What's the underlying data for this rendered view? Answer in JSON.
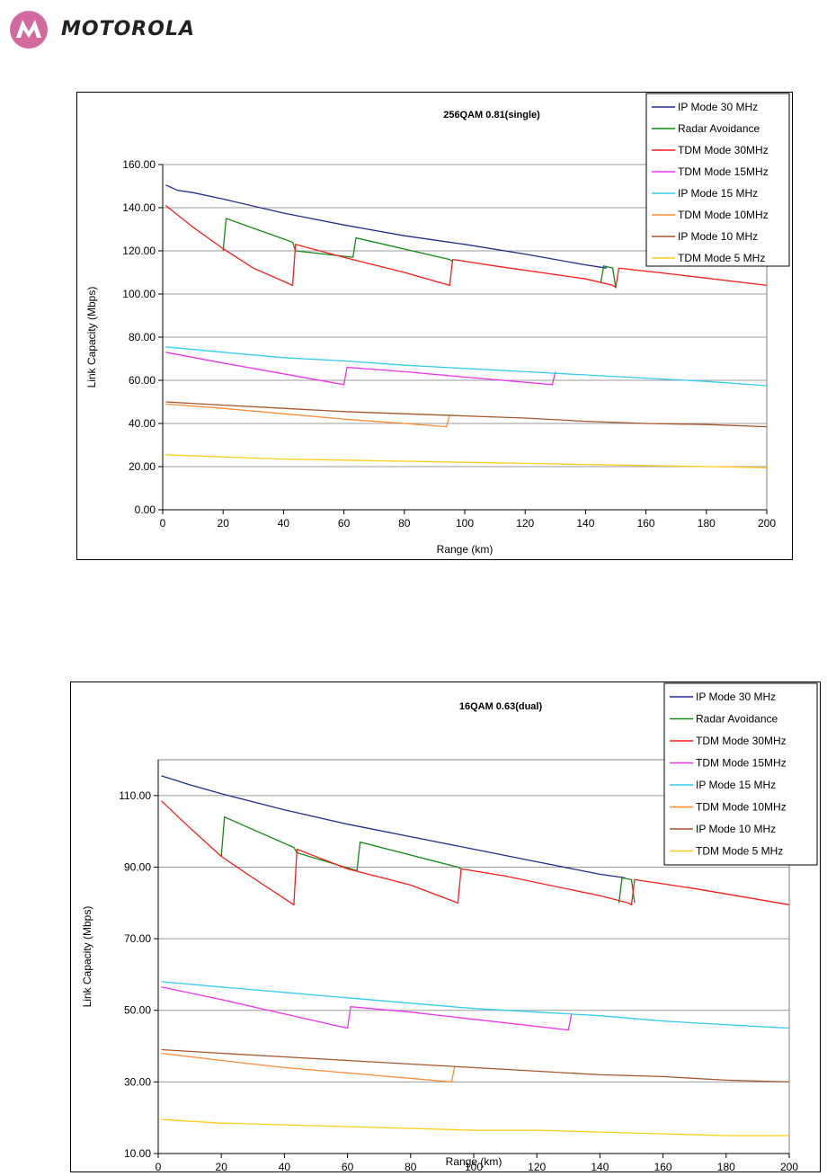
{
  "header": {
    "brand": "MOTOROLA",
    "logo_icon": "motorola-batwing-logo-icon",
    "logo_color": "#d36a9f"
  },
  "colors": {
    "IP Mode 30 MHz": "#1f2d8c",
    "Radar Avoidance": "#128a12",
    "TDM Mode 30MHz": "#ff1a1a",
    "TDM Mode 15MHz": "#ee33ee",
    "IP Mode 15 MHz": "#33ccee",
    "TDM Mode 10MHz": "#ff8a33",
    "IP Mode 10 MHz": "#a8552b",
    "TDM Mode 5 MHz": "#ffcc1a"
  },
  "chart_data": [
    {
      "type": "line",
      "title": "256QAM 0.81(single)",
      "xlabel": "Range (km)",
      "ylabel": "Link Capacity (Mbps)",
      "xlim": [
        0,
        200
      ],
      "ylim": [
        0,
        160
      ],
      "xticks": [
        0,
        20,
        40,
        60,
        80,
        100,
        120,
        140,
        160,
        180,
        200
      ],
      "yticks": [
        0,
        20,
        40,
        60,
        80,
        100,
        120,
        140,
        160
      ],
      "yticklabels": [
        "0.00",
        "20.00",
        "40.00",
        "60.00",
        "80.00",
        "100.00",
        "120.00",
        "140.00",
        "160.00"
      ],
      "grid": "horizontal",
      "legend": "top-right",
      "series": [
        {
          "name": "IP Mode 30 MHz",
          "points": [
            [
              1,
              150.5
            ],
            [
              5,
              148
            ],
            [
              10,
              147
            ],
            [
              20,
              144
            ],
            [
              40,
              137.5
            ],
            [
              60,
              132
            ],
            [
              80,
              127
            ],
            [
              100,
              123
            ],
            [
              120,
              118.5
            ],
            [
              140,
              113.5
            ],
            [
              147,
              112
            ]
          ]
        },
        {
          "name": "Radar Avoidance",
          "points": [
            [
              20,
              120
            ],
            [
              21,
              135
            ],
            [
              43,
              124
            ],
            [
              44,
              120
            ],
            [
              63,
              117
            ],
            [
              64,
              126
            ],
            [
              95,
              116
            ],
            [
              96,
              115
            ]
          ],
          "extra": [
            [
              [
                145,
                105
              ],
              [
                146,
                113
              ],
              [
                149,
                112
              ],
              [
                150,
                103
              ]
            ]
          ]
        },
        {
          "name": "TDM Mode 30MHz",
          "points": [
            [
              1,
              141
            ],
            [
              10,
              131
            ],
            [
              20,
              121
            ],
            [
              30,
              112
            ],
            [
              43,
              104
            ],
            [
              44,
              123
            ],
            [
              60,
              117
            ],
            [
              80,
              110
            ],
            [
              95,
              104
            ],
            [
              96,
              116
            ],
            [
              110,
              113
            ],
            [
              140,
              107
            ],
            [
              149,
              104
            ],
            [
              150,
              103
            ],
            [
              151,
              112
            ],
            [
              170,
              109
            ],
            [
              200,
              104
            ]
          ]
        },
        {
          "name": "TDM Mode 15MHz",
          "points": [
            [
              1,
              73
            ],
            [
              20,
              68
            ],
            [
              40,
              63
            ],
            [
              60,
              58
            ],
            [
              61,
              66
            ],
            [
              80,
              64
            ],
            [
              100,
              61.5
            ],
            [
              129,
              58
            ],
            [
              130,
              64
            ]
          ]
        },
        {
          "name": "IP Mode 15 MHz",
          "points": [
            [
              1,
              75.5
            ],
            [
              20,
              73
            ],
            [
              40,
              70.5
            ],
            [
              60,
              69
            ],
            [
              80,
              67
            ],
            [
              100,
              65.5
            ],
            [
              120,
              64
            ],
            [
              140,
              62.5
            ],
            [
              160,
              61
            ],
            [
              180,
              59.5
            ],
            [
              200,
              57.5
            ]
          ]
        },
        {
          "name": "TDM Mode 10MHz",
          "points": [
            [
              1,
              49
            ],
            [
              20,
              47
            ],
            [
              40,
              44.5
            ],
            [
              60,
              42
            ],
            [
              80,
              40
            ],
            [
              94,
              38.5
            ],
            [
              95,
              44
            ]
          ]
        },
        {
          "name": "IP Mode 10 MHz",
          "points": [
            [
              1,
              50
            ],
            [
              20,
              48.5
            ],
            [
              40,
              47
            ],
            [
              60,
              45.5
            ],
            [
              80,
              44.5
            ],
            [
              100,
              43.5
            ],
            [
              120,
              42.5
            ],
            [
              140,
              41
            ],
            [
              160,
              40
            ],
            [
              180,
              39.5
            ],
            [
              200,
              38.5
            ]
          ]
        },
        {
          "name": "TDM Mode 5 MHz",
          "points": [
            [
              1,
              25.5
            ],
            [
              20,
              24.5
            ],
            [
              40,
              23.5
            ],
            [
              60,
              23
            ],
            [
              80,
              22.5
            ],
            [
              100,
              22
            ],
            [
              120,
              21.5
            ],
            [
              140,
              21
            ],
            [
              160,
              20.5
            ],
            [
              180,
              20
            ],
            [
              200,
              19.5
            ]
          ]
        }
      ]
    },
    {
      "type": "line",
      "title": "16QAM 0.63(dual)",
      "xlabel": "Range (km)",
      "ylabel": "Link Capacity (Mbps)",
      "xlim": [
        0,
        200
      ],
      "ylim": [
        10,
        120
      ],
      "xticks": [
        0,
        20,
        40,
        60,
        80,
        100,
        120,
        140,
        160,
        180,
        200
      ],
      "yticks": [
        10,
        30,
        50,
        70,
        90,
        110
      ],
      "yticklabels": [
        "10.00",
        "30.00",
        "50.00",
        "70.00",
        "90.00",
        "110.00"
      ],
      "grid": "horizontal",
      "legend": "top-right",
      "series": [
        {
          "name": "IP Mode 30 MHz",
          "points": [
            [
              1,
              115.5
            ],
            [
              10,
              113
            ],
            [
              20,
              110.5
            ],
            [
              40,
              106
            ],
            [
              60,
              102
            ],
            [
              80,
              98.5
            ],
            [
              100,
              95
            ],
            [
              120,
              91.5
            ],
            [
              140,
              88
            ],
            [
              148,
              87
            ]
          ]
        },
        {
          "name": "Radar Avoidance",
          "points": [
            [
              20,
              93
            ],
            [
              21,
              104
            ],
            [
              43,
              95.5
            ],
            [
              44,
              94
            ],
            [
              63,
              89
            ],
            [
              64,
              97
            ],
            [
              95,
              90
            ],
            [
              96,
              89.5
            ]
          ],
          "extra": [
            [
              [
                146,
                80
              ],
              [
                147,
                87
              ],
              [
                150,
                86.5
              ],
              [
                151,
                80
              ]
            ]
          ]
        },
        {
          "name": "TDM Mode 30MHz",
          "points": [
            [
              1,
              108.5
            ],
            [
              10,
              101
            ],
            [
              20,
              93
            ],
            [
              30,
              87
            ],
            [
              43,
              79.5
            ],
            [
              44,
              95
            ],
            [
              60,
              89.5
            ],
            [
              80,
              85
            ],
            [
              95,
              80
            ],
            [
              96,
              89.5
            ],
            [
              110,
              87.5
            ],
            [
              140,
              82
            ],
            [
              149,
              80
            ],
            [
              150,
              79.5
            ],
            [
              151,
              86.5
            ],
            [
              170,
              84
            ],
            [
              200,
              79.5
            ]
          ]
        },
        {
          "name": "TDM Mode 15MHz",
          "points": [
            [
              1,
              56.5
            ],
            [
              20,
              53
            ],
            [
              40,
              49
            ],
            [
              60,
              45
            ],
            [
              61,
              51
            ],
            [
              80,
              49.5
            ],
            [
              100,
              47.5
            ],
            [
              130,
              44.5
            ],
            [
              131,
              49
            ]
          ]
        },
        {
          "name": "IP Mode 15 MHz",
          "points": [
            [
              1,
              58
            ],
            [
              20,
              56.5
            ],
            [
              40,
              55
            ],
            [
              60,
              53.5
            ],
            [
              80,
              52
            ],
            [
              100,
              50.5
            ],
            [
              120,
              49.5
            ],
            [
              140,
              48.5
            ],
            [
              160,
              47
            ],
            [
              180,
              46
            ],
            [
              200,
              45
            ]
          ]
        },
        {
          "name": "TDM Mode 10MHz",
          "points": [
            [
              1,
              38
            ],
            [
              20,
              36
            ],
            [
              40,
              34
            ],
            [
              60,
              32.5
            ],
            [
              80,
              31
            ],
            [
              93,
              30
            ],
            [
              94,
              34.5
            ]
          ]
        },
        {
          "name": "IP Mode 10 MHz",
          "points": [
            [
              1,
              39
            ],
            [
              20,
              38
            ],
            [
              40,
              37
            ],
            [
              60,
              36
            ],
            [
              80,
              35
            ],
            [
              100,
              34
            ],
            [
              120,
              33
            ],
            [
              140,
              32
            ],
            [
              160,
              31.5
            ],
            [
              180,
              30.5
            ],
            [
              200,
              30
            ]
          ]
        },
        {
          "name": "TDM Mode 5 MHz",
          "points": [
            [
              1,
              19.5
            ],
            [
              20,
              18.5
            ],
            [
              40,
              18
            ],
            [
              60,
              17.5
            ],
            [
              80,
              17
            ],
            [
              100,
              16.5
            ],
            [
              120,
              16.5
            ],
            [
              140,
              16
            ],
            [
              160,
              15.5
            ],
            [
              180,
              15
            ],
            [
              200,
              15
            ]
          ]
        }
      ]
    }
  ]
}
